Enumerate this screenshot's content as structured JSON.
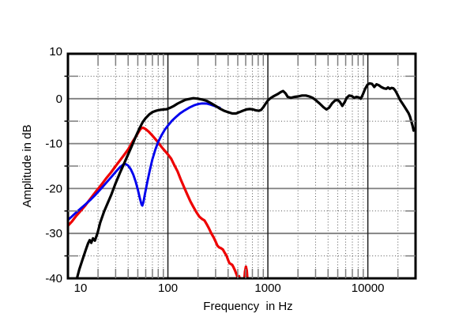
{
  "figure": {
    "background": "#ffffff"
  },
  "chart_data": {
    "type": "line",
    "title": "",
    "xlabel": "Frequency  in Hz",
    "ylabel": "Amplitude in dB",
    "x_scale": "log",
    "xlim": [
      10,
      30000
    ],
    "ylim": [
      -40,
      10
    ],
    "x_ticks_major": [
      10,
      100,
      1000,
      10000
    ],
    "x_tick_labels": [
      "10",
      "100",
      "1000",
      "10000"
    ],
    "y_ticks_major": [
      10,
      0,
      -10,
      -20,
      -30,
      -40
    ],
    "y_tick_labels": [
      "10",
      "0",
      "-10",
      "-20",
      "-30",
      "-40"
    ],
    "y_minor_step": 5,
    "grid": "major solid gray, minor dotted with solid tick stubs at borders, log-decade verticals dark",
    "legend": "none",
    "colors": {
      "frame": "#000000",
      "major_grid": "#7e7e7e",
      "decade_line": "#1f1f1f",
      "minor_dotted": "#555555",
      "black_curve": "#000000",
      "blue_curve": "#0000ee",
      "red_curve": "#ee0000"
    },
    "series": [
      {
        "name": "red-curve-port-output",
        "color": "#ee0000",
        "width": 3.2,
        "points": [
          [
            10,
            -28.3
          ],
          [
            11,
            -27.3
          ],
          [
            12,
            -26.2
          ],
          [
            13.5,
            -24.9
          ],
          [
            15,
            -23.7
          ],
          [
            17,
            -22.1
          ],
          [
            19,
            -20.7
          ],
          [
            21.5,
            -19.2
          ],
          [
            24,
            -17.8
          ],
          [
            27,
            -16.4
          ],
          [
            30,
            -15
          ],
          [
            33,
            -13.8
          ],
          [
            36,
            -12.7
          ],
          [
            40,
            -11.3
          ],
          [
            44,
            -9.7
          ],
          [
            48,
            -8.4
          ],
          [
            51,
            -7.4
          ],
          [
            53,
            -6.8
          ],
          [
            55,
            -6.5
          ],
          [
            57,
            -6.5
          ],
          [
            60,
            -6.8
          ],
          [
            64,
            -7.3
          ],
          [
            68,
            -7.9
          ],
          [
            73,
            -8.7
          ],
          [
            79,
            -9.6
          ],
          [
            86,
            -10.7
          ],
          [
            93,
            -11.6
          ],
          [
            100,
            -12.4
          ],
          [
            108,
            -13.4
          ],
          [
            116,
            -14.8
          ],
          [
            125,
            -16.2
          ],
          [
            134,
            -17.9
          ],
          [
            145,
            -19.7
          ],
          [
            156,
            -21.3
          ],
          [
            168,
            -22.9
          ],
          [
            180,
            -24.1
          ],
          [
            193,
            -25.3
          ],
          [
            207,
            -26.3
          ],
          [
            220,
            -26.8
          ],
          [
            232,
            -27.1
          ],
          [
            245,
            -28
          ],
          [
            258,
            -28.9
          ],
          [
            272,
            -30
          ],
          [
            287,
            -30.9
          ],
          [
            300,
            -31.8
          ],
          [
            312,
            -32.7
          ],
          [
            325,
            -33.1
          ],
          [
            340,
            -33.3
          ],
          [
            355,
            -33.6
          ],
          [
            370,
            -34.3
          ],
          [
            385,
            -34.9
          ],
          [
            400,
            -35.9
          ],
          [
            412,
            -36.6
          ],
          [
            425,
            -36.8
          ],
          [
            440,
            -37
          ],
          [
            455,
            -37.6
          ],
          [
            470,
            -38.3
          ],
          [
            483,
            -39
          ],
          [
            495,
            -39.6
          ],
          [
            505,
            -40.2
          ],
          [
            515,
            -39.5
          ],
          [
            525,
            -40.3
          ],
          [
            540,
            -41.5
          ],
          [
            575,
            -41.5
          ],
          [
            590,
            -38.5
          ],
          [
            603,
            -37.4
          ],
          [
            615,
            -38.3
          ],
          [
            625,
            -40.4
          ],
          [
            635,
            -41.5
          ]
        ]
      },
      {
        "name": "blue-curve-woofer-output",
        "color": "#0000ee",
        "width": 2.9,
        "points": [
          [
            10,
            -27
          ],
          [
            11,
            -26.2
          ],
          [
            12,
            -25.4
          ],
          [
            13.5,
            -24.4
          ],
          [
            15,
            -23.5
          ],
          [
            17,
            -22.4
          ],
          [
            19,
            -21.3
          ],
          [
            21.5,
            -20
          ],
          [
            24,
            -18.8
          ],
          [
            27,
            -17.5
          ],
          [
            30,
            -16.3
          ],
          [
            33,
            -15.3
          ],
          [
            35.5,
            -14.7
          ],
          [
            37.5,
            -14.5
          ],
          [
            40,
            -14.9
          ],
          [
            42.5,
            -15.7
          ],
          [
            45,
            -16.9
          ],
          [
            47.5,
            -18.4
          ],
          [
            50,
            -20.2
          ],
          [
            52.5,
            -22.2
          ],
          [
            54.5,
            -23.6
          ],
          [
            55.5,
            -23.8
          ],
          [
            57,
            -23
          ],
          [
            59,
            -21.2
          ],
          [
            62,
            -18.7
          ],
          [
            66,
            -15.9
          ],
          [
            70,
            -13.5
          ],
          [
            75,
            -11.3
          ],
          [
            80,
            -9.6
          ],
          [
            86,
            -8.2
          ],
          [
            93,
            -6.9
          ],
          [
            100,
            -6
          ],
          [
            110,
            -4.9
          ],
          [
            120,
            -4.1
          ],
          [
            132,
            -3.3
          ],
          [
            147,
            -2.6
          ],
          [
            163,
            -2
          ],
          [
            182,
            -1.5
          ],
          [
            200,
            -1.2
          ],
          [
            220,
            -1.05
          ],
          [
            245,
            -1.1
          ],
          [
            270,
            -1.35
          ],
          [
            300,
            -1.7
          ],
          [
            330,
            -2
          ]
        ]
      },
      {
        "name": "black-curve-summed-response",
        "color": "#000000",
        "width": 3.2,
        "points": [
          [
            12.3,
            -40
          ],
          [
            13,
            -38
          ],
          [
            14,
            -35.8
          ],
          [
            15,
            -33.8
          ],
          [
            15.9,
            -32.2
          ],
          [
            16.5,
            -31.5
          ],
          [
            17.1,
            -32.1
          ],
          [
            17.8,
            -31.1
          ],
          [
            18.6,
            -31.6
          ],
          [
            19.8,
            -29.9
          ],
          [
            21,
            -27.6
          ],
          [
            23,
            -25.1
          ],
          [
            25,
            -23.2
          ],
          [
            27,
            -21.5
          ],
          [
            30,
            -18.8
          ],
          [
            33,
            -16.6
          ],
          [
            36,
            -14.7
          ],
          [
            40,
            -12.4
          ],
          [
            44,
            -10.3
          ],
          [
            48,
            -8.3
          ],
          [
            52,
            -6.6
          ],
          [
            56,
            -5.2
          ],
          [
            60,
            -4.3
          ],
          [
            65,
            -3.5
          ],
          [
            70,
            -3.0
          ],
          [
            76,
            -2.7
          ],
          [
            83,
            -2.5
          ],
          [
            90,
            -2.4
          ],
          [
            97,
            -2.35
          ],
          [
            105,
            -2.05
          ],
          [
            115,
            -1.6
          ],
          [
            125,
            -1.1
          ],
          [
            137,
            -0.65
          ],
          [
            150,
            -0.25
          ],
          [
            165,
            -0.05
          ],
          [
            180,
            0.1
          ],
          [
            200,
            0
          ],
          [
            220,
            -0.2
          ],
          [
            245,
            -0.5
          ],
          [
            270,
            -1.0
          ],
          [
            300,
            -1.6
          ],
          [
            330,
            -2.2
          ],
          [
            365,
            -2.7
          ],
          [
            400,
            -3.0
          ],
          [
            440,
            -3.3
          ],
          [
            480,
            -3.3
          ],
          [
            520,
            -3.0
          ],
          [
            560,
            -2.7
          ],
          [
            610,
            -2.4
          ],
          [
            660,
            -2.3
          ],
          [
            710,
            -2.4
          ],
          [
            760,
            -2.6
          ],
          [
            810,
            -2.7
          ],
          [
            855,
            -2.5
          ],
          [
            900,
            -1.9
          ],
          [
            950,
            -1.1
          ],
          [
            1000,
            -0.4
          ],
          [
            1060,
            0.1
          ],
          [
            1150,
            0.6
          ],
          [
            1250,
            1.0
          ],
          [
            1350,
            1.5
          ],
          [
            1420,
            1.7
          ],
          [
            1500,
            1.2
          ],
          [
            1580,
            0.4
          ],
          [
            1700,
            0.2
          ],
          [
            1850,
            0.4
          ],
          [
            2000,
            0.5
          ],
          [
            2200,
            0.7
          ],
          [
            2400,
            0.7
          ],
          [
            2600,
            0.5
          ],
          [
            2800,
            0.2
          ],
          [
            3000,
            -0.3
          ],
          [
            3300,
            -1.1
          ],
          [
            3600,
            -1.9
          ],
          [
            3850,
            -2.4
          ],
          [
            4100,
            -2.0
          ],
          [
            4400,
            -1.0
          ],
          [
            4700,
            -0.4
          ],
          [
            5000,
            -0.3
          ],
          [
            5250,
            -0.7
          ],
          [
            5550,
            -1.6
          ],
          [
            5850,
            -0.8
          ],
          [
            6150,
            0.2
          ],
          [
            6500,
            0.7
          ],
          [
            6900,
            0.6
          ],
          [
            7300,
            0.2
          ],
          [
            7700,
            0.4
          ],
          [
            8100,
            0.3
          ],
          [
            8500,
            0
          ],
          [
            8900,
            0.9
          ],
          [
            9400,
            2.2
          ],
          [
            9900,
            3.1
          ],
          [
            10400,
            3.4
          ],
          [
            11000,
            3.3
          ],
          [
            11600,
            2.6
          ],
          [
            12200,
            3.2
          ],
          [
            12900,
            3.0
          ],
          [
            13600,
            2.6
          ],
          [
            14500,
            2.3
          ],
          [
            15300,
            2.2
          ],
          [
            15900,
            2.5
          ],
          [
            16600,
            2.2
          ],
          [
            17300,
            2.4
          ],
          [
            18000,
            2.3
          ],
          [
            18700,
            1.9
          ],
          [
            19500,
            1.2
          ],
          [
            20300,
            0.4
          ],
          [
            21200,
            -0.4
          ],
          [
            22200,
            -1.1
          ],
          [
            23300,
            -1.8
          ],
          [
            24400,
            -2.5
          ],
          [
            25500,
            -3.2
          ],
          [
            26400,
            -4.0
          ],
          [
            27200,
            -5.0
          ],
          [
            28000,
            -6.0
          ],
          [
            28700,
            -7.1
          ]
        ]
      }
    ]
  },
  "layout_note": "single frequency-response plot, no title, no legend"
}
